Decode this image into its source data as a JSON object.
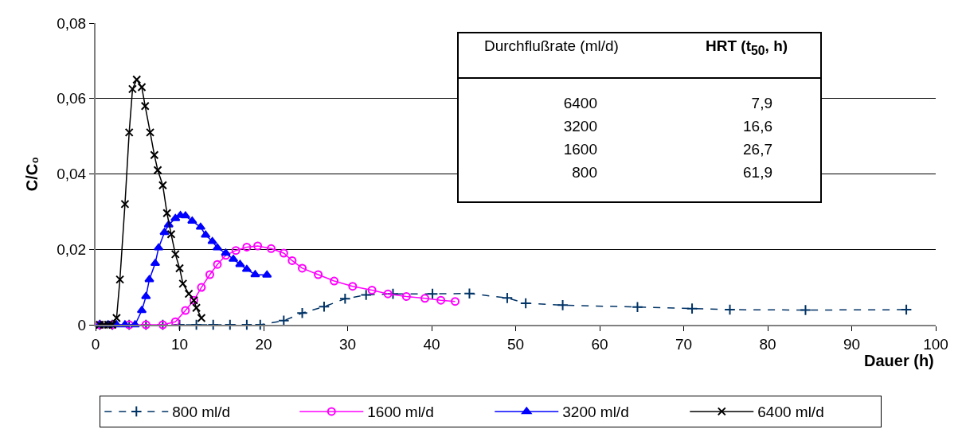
{
  "chart_data": {
    "type": "line",
    "xlabel": "Dauer (h)",
    "ylabel": "C/C₀",
    "xlim": [
      0,
      100
    ],
    "xticks": [
      0,
      10,
      20,
      30,
      40,
      50,
      60,
      70,
      80,
      90,
      100
    ],
    "ylim": [
      0,
      0.08
    ],
    "yticks": [
      0,
      {
        "value": 0.02,
        "label": "0,02"
      },
      {
        "value": 0.04,
        "label": "0,04"
      },
      {
        "value": 0.06,
        "label": "0,06"
      },
      {
        "value": 0.08,
        "label": "0,08"
      }
    ],
    "grid": "y",
    "legend": "bottom",
    "annotations": [
      "Durchflußrate (ml/d)",
      "HRT (t$_{50}$, h)",
      "6400",
      "7,9",
      "3200",
      "16,6",
      "1600",
      "26,7",
      "800",
      "61,9"
    ],
    "series": [
      {
        "name": "800 ml/d",
        "color": "#003366",
        "marker": "cross",
        "line_style": "dashed",
        "x": [
          0.5,
          2,
          4,
          6,
          8,
          10,
          12,
          14,
          16,
          18,
          19.6,
          22.4,
          24.6,
          27.2,
          29.7,
          32.2,
          35.4,
          40.1,
          44.5,
          49,
          51.2,
          55.6,
          64.5,
          71,
          75.5,
          84.5,
          96.5
        ],
        "values": [
          0,
          0,
          0,
          0,
          0,
          0,
          0,
          0,
          0,
          0,
          0,
          0.0011,
          0.0031,
          0.0048,
          0.0069,
          0.0079,
          0.0082,
          0.0082,
          0.0083,
          0.0071,
          0.0057,
          0.0052,
          0.0047,
          0.0043,
          0.004,
          0.0039,
          0.004
        ]
      },
      {
        "name": "1600 ml/d",
        "color": "#ff00ff",
        "marker": "circle",
        "x": [
          0.5,
          2,
          4,
          6,
          8,
          9.5,
          10.7,
          11.7,
          12.6,
          13.6,
          14.5,
          15.5,
          16.7,
          18,
          19.3,
          20.9,
          22.4,
          23.4,
          24.6,
          26.5,
          28.4,
          30.6,
          32.9,
          34.8,
          37,
          39.2,
          41.1,
          42.8
        ],
        "values": [
          0,
          0,
          0,
          0,
          0,
          0.0008,
          0.0038,
          0.0065,
          0.0099,
          0.0133,
          0.016,
          0.0184,
          0.0197,
          0.0206,
          0.0209,
          0.0202,
          0.019,
          0.017,
          0.015,
          0.0133,
          0.0116,
          0.0102,
          0.0092,
          0.0082,
          0.0075,
          0.007,
          0.0065,
          0.0062
        ]
      },
      {
        "name": "3200 ml/d",
        "color": "#0000ff",
        "marker": "triangle",
        "x": [
          0.5,
          1.5,
          2.5,
          3.5,
          4.7,
          5.5,
          6,
          6.4,
          7.1,
          7.5,
          8.2,
          8.7,
          9.5,
          10.1,
          10.7,
          11.5,
          12.5,
          13.1,
          13.9,
          14.5,
          15.5,
          16.4,
          17.2,
          18,
          19,
          20.4
        ],
        "values": [
          0,
          0,
          0,
          0,
          0,
          0.0038,
          0.0075,
          0.012,
          0.0163,
          0.0204,
          0.0245,
          0.0265,
          0.0282,
          0.029,
          0.0289,
          0.0275,
          0.0259,
          0.0238,
          0.0221,
          0.0204,
          0.019,
          0.0174,
          0.016,
          0.0147,
          0.0133,
          0.0132
        ]
      },
      {
        "name": "6400 ml/d",
        "color": "#000000",
        "marker": "x",
        "x": [
          0.5,
          1,
          1.5,
          2,
          2.5,
          2.9,
          3.5,
          4,
          4.4,
          4.9,
          5.5,
          5.9,
          6.5,
          7,
          7.4,
          8,
          8.5,
          9,
          9.5,
          10,
          10.4,
          11.1,
          11.7,
          12,
          12.6
        ],
        "values": [
          0,
          0,
          0,
          0,
          0.0018,
          0.012,
          0.032,
          0.051,
          0.0625,
          0.065,
          0.063,
          0.058,
          0.051,
          0.045,
          0.041,
          0.037,
          0.0296,
          0.024,
          0.0187,
          0.015,
          0.0109,
          0.0082,
          0.0065,
          0.0045,
          0.0018
        ]
      }
    ]
  }
}
